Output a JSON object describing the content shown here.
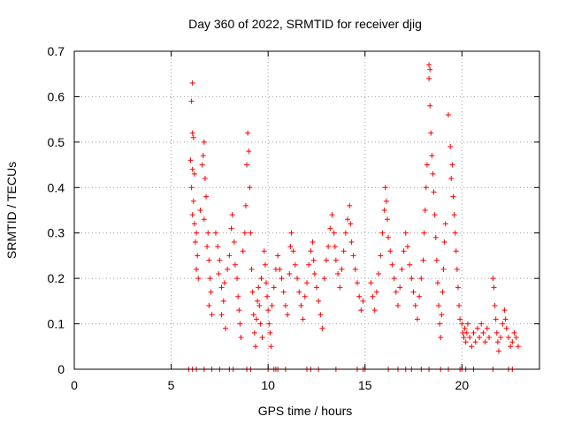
{
  "chart_data": {
    "type": "scatter",
    "title": "Day 360 of 2022, SRMTID for receiver djig",
    "xlabel": "GPS time / hours",
    "ylabel": "SRMTID / TECUs",
    "xlim": [
      0,
      24
    ],
    "ylim": [
      0,
      0.7
    ],
    "xticks": [
      0,
      5,
      10,
      15,
      20
    ],
    "yticks": [
      0,
      0.1,
      0.2,
      0.3,
      0.4,
      0.5,
      0.6,
      0.7
    ],
    "xtick_labels": [
      "0",
      "5",
      "10",
      "15",
      "20"
    ],
    "ytick_labels": [
      "0",
      "0.1",
      "0.2",
      "0.3",
      "0.4",
      "0.5",
      "0.6",
      "0.7"
    ],
    "grid": true,
    "marker": "+",
    "color": "#ff0000",
    "series": [
      {
        "name": "SRMTID",
        "points": [
          [
            5.9,
            0.0
          ],
          [
            6.1,
            0.0
          ],
          [
            6.3,
            0.0
          ],
          [
            6.7,
            0.0
          ],
          [
            7.1,
            0.0
          ],
          [
            7.5,
            0.0
          ],
          [
            8.0,
            0.0
          ],
          [
            8.2,
            0.0
          ],
          [
            8.9,
            0.0
          ],
          [
            9.1,
            0.0
          ],
          [
            10.0,
            0.0
          ],
          [
            10.3,
            0.0
          ],
          [
            10.4,
            0.0
          ],
          [
            10.5,
            0.0
          ],
          [
            10.9,
            0.0
          ],
          [
            12.0,
            0.0
          ],
          [
            12.2,
            0.0
          ],
          [
            12.6,
            0.0
          ],
          [
            13.5,
            0.0
          ],
          [
            14.6,
            0.0
          ],
          [
            14.9,
            0.0
          ],
          [
            15.0,
            0.0
          ],
          [
            16.2,
            0.0
          ],
          [
            16.7,
            0.0
          ],
          [
            17.1,
            0.0
          ],
          [
            17.4,
            0.0
          ],
          [
            17.9,
            0.0
          ],
          [
            18.3,
            0.0
          ],
          [
            18.9,
            0.0
          ],
          [
            19.3,
            0.0
          ],
          [
            19.9,
            0.0
          ],
          [
            20.0,
            0.0
          ],
          [
            20.2,
            0.0
          ],
          [
            20.6,
            0.0
          ],
          [
            21.6,
            0.0
          ],
          [
            22.4,
            0.0
          ],
          [
            22.6,
            0.0
          ],
          [
            6.1,
            0.63
          ],
          [
            6.05,
            0.59
          ],
          [
            6.1,
            0.52
          ],
          [
            6.15,
            0.51
          ],
          [
            6.0,
            0.46
          ],
          [
            6.1,
            0.44
          ],
          [
            6.2,
            0.43
          ],
          [
            6.05,
            0.4
          ],
          [
            6.15,
            0.37
          ],
          [
            6.1,
            0.34
          ],
          [
            6.2,
            0.32
          ],
          [
            6.3,
            0.3
          ],
          [
            6.25,
            0.28
          ],
          [
            6.35,
            0.25
          ],
          [
            6.3,
            0.22
          ],
          [
            6.4,
            0.2
          ],
          [
            6.5,
            0.35
          ],
          [
            6.6,
            0.45
          ],
          [
            6.7,
            0.5
          ],
          [
            6.65,
            0.47
          ],
          [
            6.75,
            0.42
          ],
          [
            6.8,
            0.38
          ],
          [
            6.7,
            0.33
          ],
          [
            6.9,
            0.3
          ],
          [
            6.85,
            0.27
          ],
          [
            6.95,
            0.24
          ],
          [
            7.0,
            0.2
          ],
          [
            7.05,
            0.17
          ],
          [
            6.95,
            0.14
          ],
          [
            7.1,
            0.12
          ],
          [
            7.3,
            0.3
          ],
          [
            7.4,
            0.27
          ],
          [
            7.5,
            0.24
          ],
          [
            7.45,
            0.21
          ],
          [
            7.6,
            0.18
          ],
          [
            7.7,
            0.15
          ],
          [
            7.6,
            0.12
          ],
          [
            7.8,
            0.09
          ],
          [
            7.75,
            0.19
          ],
          [
            7.9,
            0.22
          ],
          [
            8.0,
            0.25
          ],
          [
            8.1,
            0.31
          ],
          [
            8.15,
            0.34
          ],
          [
            8.25,
            0.28
          ],
          [
            8.3,
            0.23
          ],
          [
            8.4,
            0.2
          ],
          [
            8.45,
            0.16
          ],
          [
            8.5,
            0.13
          ],
          [
            8.55,
            0.1
          ],
          [
            8.6,
            0.07
          ],
          [
            8.7,
            0.26
          ],
          [
            8.8,
            0.3
          ],
          [
            8.85,
            0.36
          ],
          [
            8.9,
            0.45
          ],
          [
            8.95,
            0.52
          ],
          [
            9.0,
            0.48
          ],
          [
            9.05,
            0.4
          ],
          [
            9.1,
            0.3
          ],
          [
            9.15,
            0.22
          ],
          [
            9.2,
            0.17
          ],
          [
            9.25,
            0.12
          ],
          [
            9.3,
            0.08
          ],
          [
            9.35,
            0.05
          ],
          [
            9.4,
            0.11
          ],
          [
            9.45,
            0.15
          ],
          [
            9.5,
            0.18
          ],
          [
            9.55,
            0.14
          ],
          [
            9.6,
            0.1
          ],
          [
            9.7,
            0.07
          ],
          [
            9.65,
            0.2
          ],
          [
            9.8,
            0.26
          ],
          [
            9.85,
            0.23
          ],
          [
            9.9,
            0.19
          ],
          [
            9.95,
            0.16
          ],
          [
            10.0,
            0.13
          ],
          [
            10.05,
            0.1
          ],
          [
            10.1,
            0.08
          ],
          [
            10.15,
            0.05
          ],
          [
            10.2,
            0.14
          ],
          [
            10.3,
            0.18
          ],
          [
            10.4,
            0.22
          ],
          [
            10.5,
            0.25
          ],
          [
            10.6,
            0.22
          ],
          [
            10.7,
            0.2
          ],
          [
            10.8,
            0.17
          ],
          [
            10.9,
            0.14
          ],
          [
            11.0,
            0.12
          ],
          [
            11.1,
            0.21
          ],
          [
            11.15,
            0.27
          ],
          [
            11.2,
            0.3
          ],
          [
            11.3,
            0.26
          ],
          [
            11.4,
            0.23
          ],
          [
            11.5,
            0.2
          ],
          [
            11.6,
            0.17
          ],
          [
            11.7,
            0.14
          ],
          [
            11.8,
            0.11
          ],
          [
            11.9,
            0.16
          ],
          [
            12.0,
            0.19
          ],
          [
            12.1,
            0.23
          ],
          [
            12.2,
            0.26
          ],
          [
            12.3,
            0.28
          ],
          [
            12.35,
            0.24
          ],
          [
            12.4,
            0.21
          ],
          [
            12.5,
            0.18
          ],
          [
            12.6,
            0.15
          ],
          [
            12.7,
            0.12
          ],
          [
            12.8,
            0.09
          ],
          [
            12.9,
            0.2
          ],
          [
            13.0,
            0.24
          ],
          [
            13.1,
            0.27
          ],
          [
            13.2,
            0.31
          ],
          [
            13.3,
            0.34
          ],
          [
            13.4,
            0.3
          ],
          [
            13.45,
            0.27
          ],
          [
            13.5,
            0.24
          ],
          [
            13.6,
            0.21
          ],
          [
            13.7,
            0.18
          ],
          [
            13.8,
            0.22
          ],
          [
            13.9,
            0.26
          ],
          [
            14.0,
            0.3
          ],
          [
            14.1,
            0.33
          ],
          [
            14.2,
            0.36
          ],
          [
            14.25,
            0.32
          ],
          [
            14.3,
            0.28
          ],
          [
            14.4,
            0.25
          ],
          [
            14.5,
            0.22
          ],
          [
            14.6,
            0.19
          ],
          [
            14.7,
            0.16
          ],
          [
            14.8,
            0.13
          ],
          [
            14.9,
            0.15
          ],
          [
            15.3,
            0.19
          ],
          [
            15.4,
            0.16
          ],
          [
            15.5,
            0.13
          ],
          [
            15.6,
            0.17
          ],
          [
            15.7,
            0.21
          ],
          [
            15.8,
            0.25
          ],
          [
            15.9,
            0.3
          ],
          [
            16.0,
            0.35
          ],
          [
            16.05,
            0.4
          ],
          [
            16.1,
            0.37
          ],
          [
            16.15,
            0.33
          ],
          [
            16.2,
            0.29
          ],
          [
            16.3,
            0.26
          ],
          [
            16.4,
            0.23
          ],
          [
            16.5,
            0.2
          ],
          [
            16.6,
            0.17
          ],
          [
            16.7,
            0.14
          ],
          [
            16.8,
            0.18
          ],
          [
            16.9,
            0.22
          ],
          [
            17.0,
            0.26
          ],
          [
            17.1,
            0.3
          ],
          [
            17.2,
            0.27
          ],
          [
            17.3,
            0.23
          ],
          [
            17.4,
            0.2
          ],
          [
            17.5,
            0.17
          ],
          [
            17.6,
            0.14
          ],
          [
            17.7,
            0.11
          ],
          [
            17.8,
            0.16
          ],
          [
            17.9,
            0.2
          ],
          [
            18.0,
            0.24
          ],
          [
            18.05,
            0.3
          ],
          [
            18.1,
            0.35
          ],
          [
            18.15,
            0.4
          ],
          [
            18.2,
            0.45
          ],
          [
            18.3,
            0.67
          ],
          [
            18.35,
            0.66
          ],
          [
            18.3,
            0.64
          ],
          [
            18.35,
            0.58
          ],
          [
            18.4,
            0.52
          ],
          [
            18.45,
            0.47
          ],
          [
            18.5,
            0.43
          ],
          [
            18.55,
            0.39
          ],
          [
            18.6,
            0.34
          ],
          [
            18.65,
            0.29
          ],
          [
            18.7,
            0.24
          ],
          [
            18.75,
            0.19
          ],
          [
            18.8,
            0.14
          ],
          [
            18.85,
            0.1
          ],
          [
            18.9,
            0.07
          ],
          [
            18.95,
            0.12
          ],
          [
            19.0,
            0.17
          ],
          [
            19.05,
            0.22
          ],
          [
            19.1,
            0.28
          ],
          [
            19.15,
            0.32
          ],
          [
            19.3,
            0.56
          ],
          [
            19.4,
            0.49
          ],
          [
            19.5,
            0.45
          ],
          [
            19.45,
            0.42
          ],
          [
            19.55,
            0.38
          ],
          [
            19.6,
            0.34
          ],
          [
            19.65,
            0.3
          ],
          [
            19.7,
            0.26
          ],
          [
            19.75,
            0.22
          ],
          [
            19.8,
            0.18
          ],
          [
            19.85,
            0.14
          ],
          [
            19.9,
            0.11
          ],
          [
            20.0,
            0.1
          ],
          [
            20.05,
            0.08
          ],
          [
            20.1,
            0.07
          ],
          [
            20.15,
            0.09
          ],
          [
            20.2,
            0.06
          ],
          [
            20.25,
            0.08
          ],
          [
            20.3,
            0.1
          ],
          [
            20.4,
            0.07
          ],
          [
            20.5,
            0.05
          ],
          [
            20.6,
            0.08
          ],
          [
            20.7,
            0.06
          ],
          [
            20.8,
            0.09
          ],
          [
            20.9,
            0.07
          ],
          [
            21.0,
            0.1
          ],
          [
            21.1,
            0.08
          ],
          [
            21.2,
            0.06
          ],
          [
            21.3,
            0.09
          ],
          [
            21.4,
            0.07
          ],
          [
            21.6,
            0.2
          ],
          [
            21.65,
            0.18
          ],
          [
            21.7,
            0.14
          ],
          [
            21.75,
            0.11
          ],
          [
            21.8,
            0.08
          ],
          [
            21.85,
            0.06
          ],
          [
            21.9,
            0.04
          ],
          [
            22.0,
            0.07
          ],
          [
            22.1,
            0.1
          ],
          [
            22.2,
            0.13
          ],
          [
            22.25,
            0.11
          ],
          [
            22.3,
            0.09
          ],
          [
            22.4,
            0.07
          ],
          [
            22.5,
            0.05
          ],
          [
            22.6,
            0.06
          ],
          [
            22.7,
            0.08
          ],
          [
            22.8,
            0.07
          ],
          [
            22.9,
            0.05
          ]
        ]
      }
    ]
  }
}
